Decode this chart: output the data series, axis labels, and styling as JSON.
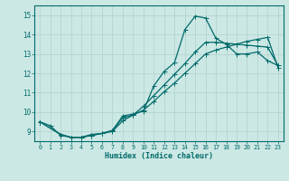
{
  "xlabel": "Humidex (Indice chaleur)",
  "bg_color": "#cce8e4",
  "line_color": "#006b6b",
  "grid_color": "#b0d0cc",
  "xlim": [
    -0.5,
    23.5
  ],
  "ylim": [
    8.5,
    15.5
  ],
  "xticks": [
    0,
    1,
    2,
    3,
    4,
    5,
    6,
    7,
    8,
    9,
    10,
    11,
    12,
    13,
    14,
    15,
    16,
    17,
    18,
    19,
    20,
    21,
    22,
    23
  ],
  "yticks": [
    9,
    10,
    11,
    12,
    13,
    14,
    15
  ],
  "line1_x": [
    0,
    1,
    2,
    3,
    4,
    5,
    6,
    7,
    8,
    9,
    10,
    11,
    12,
    13,
    14,
    15,
    16,
    17,
    18,
    19,
    20,
    21,
    22,
    23
  ],
  "line1_y": [
    9.5,
    9.3,
    8.8,
    8.7,
    8.7,
    8.85,
    8.9,
    9.05,
    9.8,
    9.9,
    10.05,
    11.35,
    12.1,
    12.55,
    14.25,
    14.95,
    14.85,
    13.8,
    13.5,
    13.0,
    13.0,
    13.1,
    12.65,
    12.4
  ],
  "line2_x": [
    0,
    2,
    3,
    4,
    5,
    6,
    7,
    8,
    9,
    10,
    11,
    12,
    13,
    14,
    15,
    16,
    17,
    18,
    19,
    20,
    21,
    22,
    23
  ],
  "line2_y": [
    9.5,
    8.85,
    8.7,
    8.7,
    8.8,
    8.9,
    9.0,
    9.55,
    9.85,
    10.3,
    10.85,
    11.4,
    11.95,
    12.5,
    13.1,
    13.6,
    13.6,
    13.55,
    13.5,
    13.45,
    13.4,
    13.35,
    12.4
  ],
  "line3_x": [
    0,
    2,
    3,
    4,
    5,
    6,
    7,
    8,
    9,
    10,
    11,
    12,
    13,
    14,
    15,
    16,
    17,
    18,
    19,
    20,
    21,
    22,
    23
  ],
  "line3_y": [
    9.5,
    8.85,
    8.7,
    8.7,
    8.8,
    8.9,
    9.05,
    9.7,
    9.85,
    10.1,
    10.55,
    11.05,
    11.5,
    12.0,
    12.5,
    13.0,
    13.2,
    13.35,
    13.5,
    13.65,
    13.75,
    13.85,
    12.3
  ]
}
